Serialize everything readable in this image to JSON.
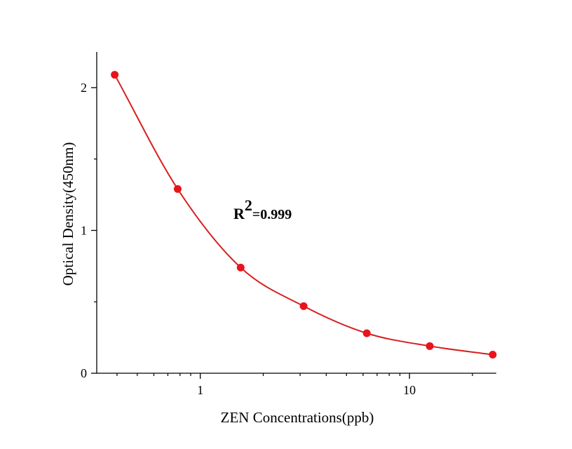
{
  "chart_data": {
    "type": "scatter",
    "xlabel": "ZEN Concentrations(ppb)",
    "ylabel": "Optical Density(450nm)",
    "x_scale": "log",
    "xlim": [
      0.32,
      26
    ],
    "ylim": [
      0,
      2.25
    ],
    "x_ticks": [
      {
        "value": 1,
        "label": "1"
      },
      {
        "value": 10,
        "label": "10"
      }
    ],
    "y_ticks": [
      {
        "value": 0,
        "label": "0"
      },
      {
        "value": 1,
        "label": "1"
      },
      {
        "value": 2,
        "label": "2"
      }
    ],
    "points": {
      "x": [
        0.39,
        0.78,
        1.56,
        3.12,
        6.25,
        12.5,
        25
      ],
      "y": [
        2.09,
        1.29,
        0.74,
        0.47,
        0.28,
        0.19,
        0.13
      ]
    },
    "fit_curve": true,
    "annotation": {
      "base": "R",
      "sup": "2",
      "rest": "=0.999"
    },
    "colors": {
      "points": "#e8141c",
      "curve": "#d71f1f",
      "axis": "#000000"
    },
    "grid": false
  }
}
